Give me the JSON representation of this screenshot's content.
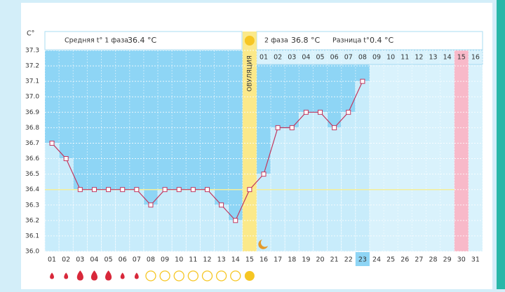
{
  "chart_data": {
    "type": "line",
    "unit_label": "C°",
    "phase1_label": "Средняя t° 1 фаза",
    "phase1_value": "36.4 °C",
    "phase2_label": "2 фаза",
    "phase2_value": "36.8 °C",
    "diff_label": "Разница t°",
    "diff_value": "0.4 °C",
    "ovulation_label": "ОВУЛЯЦИЯ",
    "categories": [
      "01",
      "02",
      "03",
      "04",
      "05",
      "06",
      "07",
      "08",
      "09",
      "10",
      "11",
      "12",
      "13",
      "14",
      "15",
      "16",
      "17",
      "18",
      "19",
      "20",
      "21",
      "22",
      "23",
      "24",
      "25",
      "26",
      "27",
      "28",
      "29",
      "30",
      "31"
    ],
    "phase2_days": [
      "01",
      "02",
      "03",
      "04",
      "05",
      "06",
      "07",
      "08",
      "09",
      "10",
      "11",
      "12",
      "13",
      "14",
      "15",
      "16"
    ],
    "series": [
      {
        "name": "t°",
        "color": "#c2365d",
        "values": [
          36.7,
          36.6,
          36.4,
          36.4,
          36.4,
          36.4,
          36.4,
          36.3,
          36.4,
          36.4,
          36.4,
          36.4,
          36.3,
          36.2,
          36.4,
          36.5,
          36.8,
          36.8,
          36.9,
          36.9,
          36.8,
          36.9,
          37.1,
          null,
          null,
          null,
          null,
          null,
          null,
          null,
          null
        ]
      }
    ],
    "cover_line": 36.4,
    "ylim": [
      36.0,
      37.3
    ],
    "yticks": [
      {
        "value": 36,
        "label": "36.0"
      },
      36.1,
      36.2,
      36.3,
      36.4,
      36.5,
      36.6,
      36.7,
      36.8,
      36.9,
      {
        "value": 37,
        "label": "37.0"
      },
      37.1,
      37.2,
      37.3
    ],
    "grid": true
  }
}
